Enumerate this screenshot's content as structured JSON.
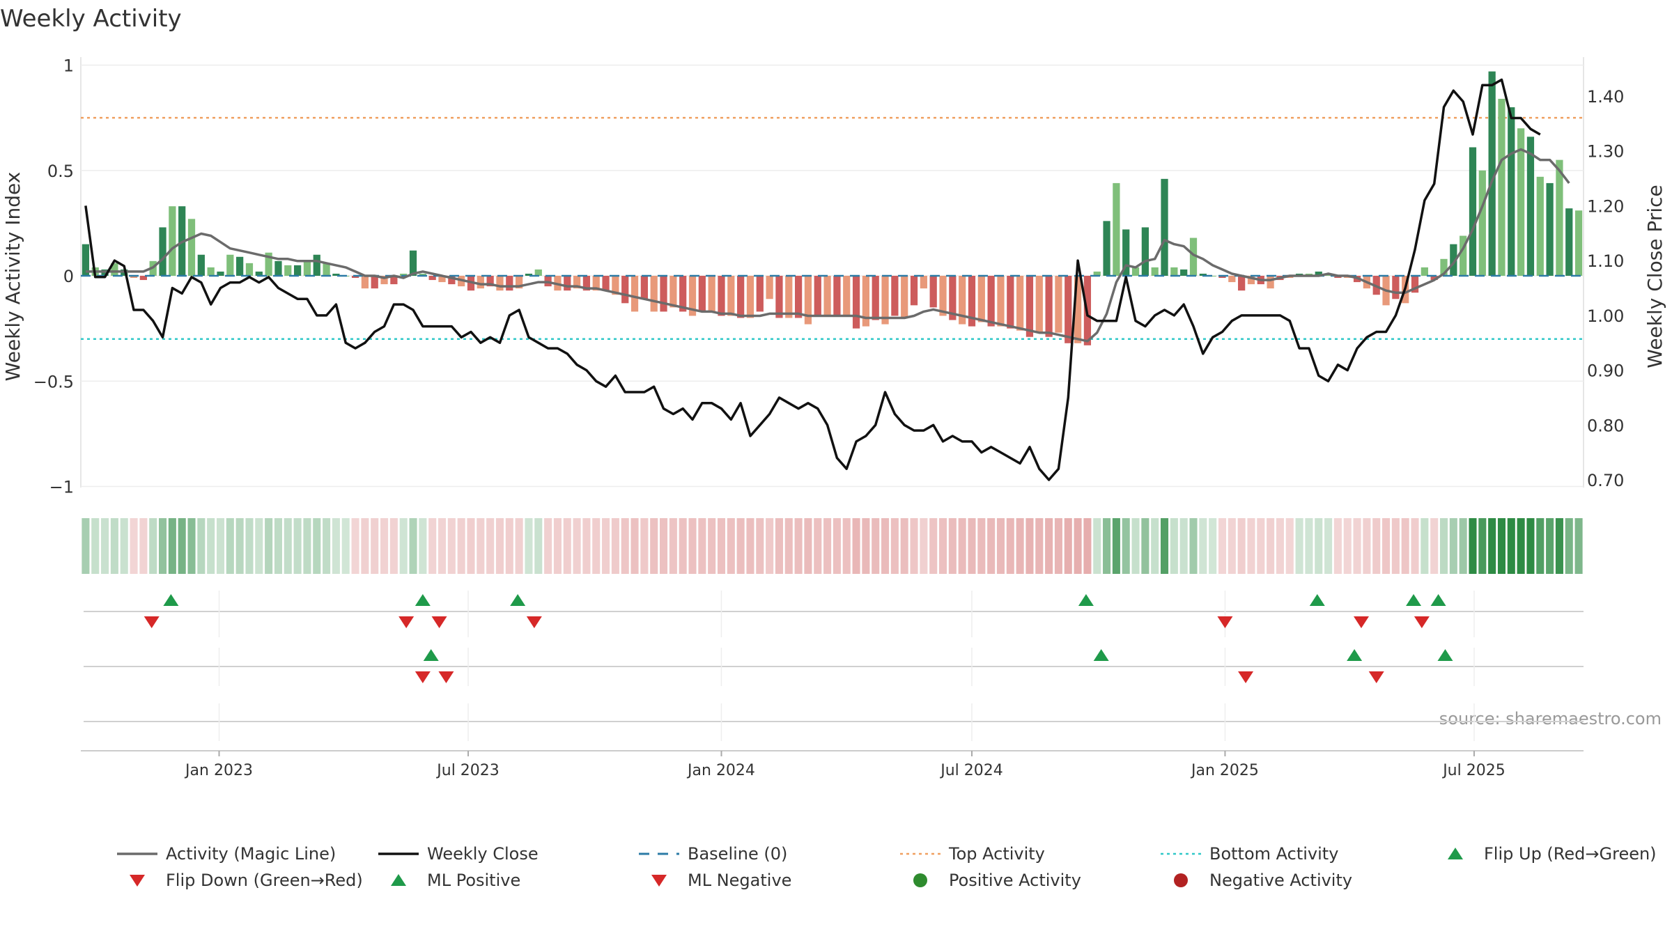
{
  "chart_data": {
    "type": "bar",
    "title": "Weekly Activity",
    "ylabel": "Weekly Activity Index",
    "y2label": "Weekly Close Price",
    "ylim": [
      -1.02,
      1.02
    ],
    "y2lim": [
      0.686,
      1.461
    ],
    "yticks": [
      1,
      0.5,
      0,
      -0.5,
      -1
    ],
    "ytick_labels": [
      "1",
      "0.5",
      "0",
      "−0.5",
      "−1"
    ],
    "y2ticks": [
      1.4,
      1.3,
      1.2,
      1.1,
      1.0,
      0.9,
      0.8,
      0.7
    ],
    "y2tick_labels": [
      "1.40",
      "1.30",
      "1.20",
      "1.10",
      "1.00",
      "0.90",
      "0.80",
      "0.70"
    ],
    "xticks": [
      "2023-01-01",
      "2023-07-01",
      "2024-01-01",
      "2024-07-01",
      "2025-01-01",
      "2025-07-01"
    ],
    "xtick_labels": [
      "Jan 2023",
      "Jul 2023",
      "Jan 2024",
      "Jul 2024",
      "Jan 2025",
      "Jul 2025"
    ],
    "top_activity": 0.75,
    "bottom_activity": -0.3,
    "baseline": 0,
    "weeks": {
      "start": "2022-09-26",
      "count": 156,
      "activity": [
        0.15,
        0.04,
        0.03,
        0.06,
        0.03,
        -0.01,
        -0.02,
        0.07,
        0.23,
        0.33,
        0.33,
        0.27,
        0.1,
        0.04,
        0.02,
        0.1,
        0.09,
        0.06,
        0.02,
        0.11,
        0.07,
        0.05,
        0.05,
        0.07,
        0.1,
        0.06,
        0.01,
        0,
        -0.01,
        -0.06,
        -0.06,
        -0.04,
        -0.04,
        0.01,
        0.12,
        0.01,
        -0.02,
        -0.03,
        -0.04,
        -0.05,
        -0.07,
        -0.06,
        -0.05,
        -0.07,
        -0.07,
        -0.06,
        0.01,
        0.03,
        -0.05,
        -0.07,
        -0.07,
        -0.06,
        -0.07,
        -0.07,
        -0.07,
        -0.09,
        -0.13,
        -0.17,
        -0.11,
        -0.17,
        -0.17,
        -0.15,
        -0.17,
        -0.19,
        -0.17,
        -0.17,
        -0.19,
        -0.19,
        -0.2,
        -0.2,
        -0.17,
        -0.11,
        -0.2,
        -0.2,
        -0.2,
        -0.23,
        -0.19,
        -0.19,
        -0.19,
        -0.19,
        -0.25,
        -0.24,
        -0.21,
        -0.23,
        -0.19,
        -0.2,
        -0.14,
        -0.06,
        -0.15,
        -0.19,
        -0.21,
        -0.23,
        -0.24,
        -0.22,
        -0.24,
        -0.24,
        -0.25,
        -0.26,
        -0.29,
        -0.27,
        -0.29,
        -0.27,
        -0.32,
        -0.32,
        -0.33,
        0.02,
        0.26,
        0.44,
        0.22,
        0.04,
        0.23,
        0.04,
        0.46,
        0.04,
        0.03,
        0.18,
        0.01,
        0,
        -0.01,
        -0.03,
        -0.07,
        -0.04,
        -0.04,
        -0.06,
        -0.02,
        -0.01,
        0.01,
        0.01,
        0.02,
        0.01,
        -0.01,
        -0.01,
        -0.03,
        -0.06,
        -0.09,
        -0.14,
        -0.11,
        -0.13,
        -0.08,
        0.04,
        -0.02,
        0.08,
        0.15,
        0.19,
        0.61,
        0.5,
        0.97,
        0.84,
        0.8,
        0.7,
        0.66,
        0.47,
        0.44,
        0.55,
        0.32,
        0.31
      ],
      "magic_line": [
        0.02,
        0.02,
        0.02,
        0.02,
        0.02,
        0.02,
        0.02,
        0.04,
        0.08,
        0.13,
        0.16,
        0.18,
        0.2,
        0.19,
        0.16,
        0.13,
        0.12,
        0.11,
        0.1,
        0.09,
        0.08,
        0.08,
        0.07,
        0.07,
        0.07,
        0.06,
        0.05,
        0.04,
        0.02,
        0,
        0,
        -0.01,
        0,
        -0.01,
        0.01,
        0.02,
        0.01,
        0,
        -0.01,
        -0.02,
        -0.03,
        -0.04,
        -0.04,
        -0.05,
        -0.05,
        -0.05,
        -0.04,
        -0.03,
        -0.03,
        -0.04,
        -0.05,
        -0.05,
        -0.06,
        -0.06,
        -0.07,
        -0.08,
        -0.09,
        -0.1,
        -0.11,
        -0.12,
        -0.13,
        -0.14,
        -0.15,
        -0.16,
        -0.17,
        -0.17,
        -0.18,
        -0.18,
        -0.19,
        -0.19,
        -0.19,
        -0.18,
        -0.18,
        -0.18,
        -0.18,
        -0.19,
        -0.19,
        -0.19,
        -0.19,
        -0.19,
        -0.19,
        -0.2,
        -0.2,
        -0.2,
        -0.2,
        -0.2,
        -0.19,
        -0.17,
        -0.16,
        -0.17,
        -0.18,
        -0.19,
        -0.2,
        -0.21,
        -0.22,
        -0.23,
        -0.24,
        -0.25,
        -0.26,
        -0.27,
        -0.27,
        -0.28,
        -0.29,
        -0.3,
        -0.31,
        -0.27,
        -0.18,
        -0.03,
        0.05,
        0.04,
        0.07,
        0.08,
        0.17,
        0.15,
        0.14,
        0.1,
        0.08,
        0.05,
        0.03,
        0.01,
        0,
        -0.01,
        -0.02,
        -0.02,
        -0.01,
        0,
        0,
        0,
        0,
        0.01,
        0,
        0,
        -0.01,
        -0.03,
        -0.05,
        -0.07,
        -0.08,
        -0.08,
        -0.06,
        -0.04,
        -0.02,
        0.01,
        0.06,
        0.13,
        0.22,
        0.33,
        0.45,
        0.55,
        0.58,
        0.6,
        0.58,
        0.55,
        0.55,
        0.5,
        0.44
      ],
      "close": [
        1.2,
        1.07,
        1.07,
        1.1,
        1.09,
        1.01,
        1.01,
        0.99,
        0.96,
        1.05,
        1.04,
        1.07,
        1.06,
        1.02,
        1.05,
        1.06,
        1.06,
        1.07,
        1.06,
        1.07,
        1.05,
        1.04,
        1.03,
        1.03,
        1.0,
        1.0,
        1.02,
        0.95,
        0.94,
        0.95,
        0.97,
        0.98,
        1.02,
        1.02,
        1.01,
        0.98,
        0.98,
        0.98,
        0.98,
        0.96,
        0.97,
        0.95,
        0.96,
        0.95,
        1.0,
        1.01,
        0.96,
        0.95,
        0.94,
        0.94,
        0.93,
        0.91,
        0.9,
        0.88,
        0.87,
        0.89,
        0.86,
        0.86,
        0.86,
        0.87,
        0.83,
        0.82,
        0.83,
        0.81,
        0.84,
        0.84,
        0.83,
        0.81,
        0.84,
        0.78,
        0.8,
        0.82,
        0.85,
        0.84,
        0.83,
        0.84,
        0.83,
        0.8,
        0.74,
        0.72,
        0.77,
        0.78,
        0.8,
        0.86,
        0.82,
        0.8,
        0.79,
        0.79,
        0.8,
        0.77,
        0.78,
        0.77,
        0.77,
        0.75,
        0.76,
        0.75,
        0.74,
        0.73,
        0.76,
        0.72,
        0.7,
        0.72,
        0.85,
        1.1,
        1.0,
        0.99,
        0.99,
        0.99,
        1.07,
        0.99,
        0.98,
        1.0,
        1.01,
        1.0,
        1.02,
        0.98,
        0.93,
        0.96,
        0.97,
        0.99,
        1.0,
        1.0,
        1.0,
        1.0,
        1.0,
        0.99,
        0.94,
        0.94,
        0.89,
        0.88,
        0.91,
        0.9,
        0.94,
        0.96,
        0.97,
        0.97,
        1.0,
        1.05,
        1.12,
        1.21,
        1.24,
        1.38,
        1.41,
        1.39,
        1.33,
        1.42,
        1.42,
        1.43,
        1.36,
        1.36,
        1.34,
        1.33
      ]
    },
    "flip_up": [
      "2022-11-27",
      "2023-05-29",
      "2023-08-06",
      "2024-09-22",
      "2025-03-09",
      "2025-05-18",
      "2025-06-05"
    ],
    "flip_down": [
      "2022-11-13",
      "2023-05-17",
      "2023-06-10",
      "2023-08-18",
      "2025-01-01",
      "2025-04-10",
      "2025-05-24"
    ],
    "ml_positive": [
      "2023-06-04",
      "2024-10-03",
      "2025-04-05",
      "2025-06-10"
    ],
    "ml_negative": [
      "2023-05-29",
      "2023-06-15",
      "2025-01-16",
      "2025-04-21"
    ],
    "source": "source: sharemaestro.com",
    "legend": [
      {
        "label": "Activity (Magic Line)",
        "kind": "line",
        "color": "#6b6b6b"
      },
      {
        "label": "Weekly Close",
        "kind": "line",
        "color": "#111111"
      },
      {
        "label": "Baseline (0)",
        "kind": "dash",
        "color": "#2c7ba6"
      },
      {
        "label": "Top Activity",
        "kind": "dot",
        "color": "#f0a060"
      },
      {
        "label": "Bottom Activity",
        "kind": "dot",
        "color": "#30c8c8"
      },
      {
        "label": "Flip Up (Red→Green)",
        "kind": "up",
        "color": "#1f9a4a"
      },
      {
        "label": "Flip Down (Green→Red)",
        "kind": "down",
        "color": "#d62828"
      },
      {
        "label": "ML Positive",
        "kind": "up",
        "color": "#1f9a4a"
      },
      {
        "label": "ML Negative",
        "kind": "down",
        "color": "#d62828"
      },
      {
        "label": "Positive Activity",
        "kind": "circle",
        "color": "#2e8b2e"
      },
      {
        "label": "Negative Activity",
        "kind": "circle",
        "color": "#b22222"
      }
    ],
    "colors": {
      "strong_pos": "#2e8555",
      "light_pos": "#7fbf7a",
      "strong_neg": "#cd5c5c",
      "light_neg": "#e8997a",
      "close_line": "#111111",
      "magic_line": "#6b6b6b",
      "baseline": "#2c7ba6",
      "top": "#f0a060",
      "bottom": "#30c8c8",
      "up": "#1f9a4a",
      "down": "#d62828"
    }
  }
}
